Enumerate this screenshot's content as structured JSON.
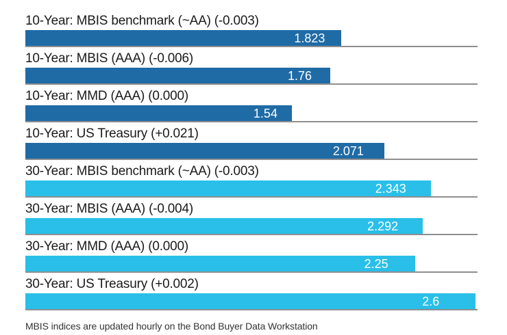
{
  "chart_data": {
    "type": "bar",
    "orientation": "horizontal",
    "xlim": [
      0,
      2.61
    ],
    "grid": "row-baselines-only",
    "legend": "none",
    "value_labels": "inside-bar-near-end",
    "rows": [
      {
        "label": "10-Year: MBIS benchmark (~AA) (-0.003)",
        "value": 1.823,
        "display_value": "1.823",
        "group": "10-year"
      },
      {
        "label": "10-Year: MBIS (AAA) (-0.006)",
        "value": 1.76,
        "display_value": "1.76",
        "group": "10-year"
      },
      {
        "label": "10-Year: MMD (AAA) (0.000)",
        "value": 1.54,
        "display_value": "1.54",
        "group": "10-year"
      },
      {
        "label": "10-Year: US Treasury (+0.021)",
        "value": 2.071,
        "display_value": "2.071",
        "group": "10-year"
      },
      {
        "label": "30-Year: MBIS benchmark (~AA) (-0.003)",
        "value": 2.343,
        "display_value": "2.343",
        "group": "30-year"
      },
      {
        "label": "30-Year: MBIS (AAA) (-0.004)",
        "value": 2.292,
        "display_value": "2.292",
        "group": "30-year"
      },
      {
        "label": "30-Year: MMD (AAA) (0.000)",
        "value": 2.25,
        "display_value": "2.25",
        "group": "30-year"
      },
      {
        "label": "30-Year: US Treasury (+0.002)",
        "value": 2.6,
        "display_value": "2.6",
        "group": "30-year"
      }
    ]
  },
  "colors": {
    "series_colors": {
      "10-year": "#1f6ba6",
      "30-year": "#29bfe9"
    },
    "baseline": "#8e8e8e",
    "label_text": "#1a1a1a",
    "value_text": "#ffffff"
  },
  "footer": {
    "note": "MBIS indices are updated hourly on the Bond Buyer Data Workstation"
  }
}
